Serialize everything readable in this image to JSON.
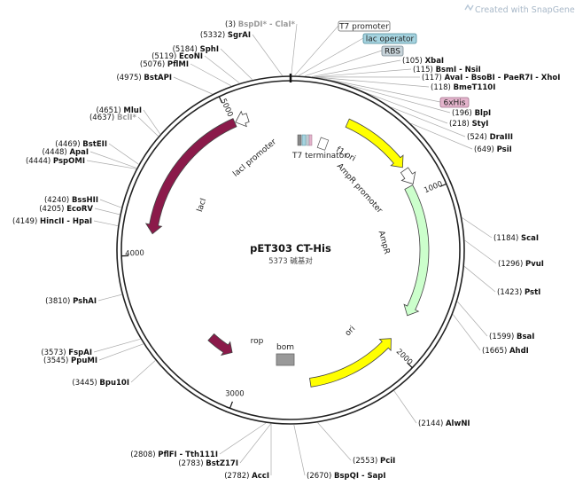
{
  "credit": {
    "text": "Created with SnapGene®",
    "icon": "snapgene-logo-icon",
    "color": "#a8b8c8"
  },
  "plasmid": {
    "name": "pET303 CT-His",
    "length_label": "5373 碱基对",
    "length": 5373
  },
  "sites": [
    {
      "id": "bspdi-clai",
      "label_pos": "(3)",
      "parts": [
        [
          "BspDI*",
          "dim"
        ],
        [
          " - ",
          "dim"
        ],
        [
          "ClaI*",
          "dim"
        ]
      ],
      "bp": 3
    },
    {
      "id": "sgrai",
      "label_pos": "(5332)",
      "parts": [
        [
          "SgrAI",
          "nm"
        ]
      ],
      "bp": 5332
    },
    {
      "id": "sphi",
      "label_pos": "(5184)",
      "parts": [
        [
          "SphI",
          "nm"
        ]
      ],
      "bp": 5184
    },
    {
      "id": "econi",
      "label_pos": "(5119)",
      "parts": [
        [
          "EcoNI",
          "nm"
        ]
      ],
      "bp": 5119
    },
    {
      "id": "pflmi",
      "label_pos": "(5076)",
      "parts": [
        [
          "PflMI",
          "nm"
        ]
      ],
      "bp": 5076
    },
    {
      "id": "bstapi",
      "label_pos": "(4975)",
      "parts": [
        [
          "BstAPI",
          "nm"
        ]
      ],
      "bp": 4975
    },
    {
      "id": "mlui",
      "label_pos": "(4651)",
      "parts": [
        [
          "MluI",
          "nm"
        ]
      ],
      "bp": 4651
    },
    {
      "id": "bcli",
      "label_pos": "(4637)",
      "parts": [
        [
          "BclI*",
          "dim"
        ]
      ],
      "bp": 4637
    },
    {
      "id": "bsteii",
      "label_pos": "(4469)",
      "parts": [
        [
          "BstEII",
          "nm"
        ]
      ],
      "bp": 4469
    },
    {
      "id": "apai",
      "label_pos": "(4448)",
      "parts": [
        [
          "ApaI",
          "nm"
        ]
      ],
      "bp": 4448
    },
    {
      "id": "pspomi",
      "label_pos": "(4444)",
      "parts": [
        [
          "PspOMI",
          "nm"
        ]
      ],
      "bp": 4444
    },
    {
      "id": "bsshii",
      "label_pos": "(4240)",
      "parts": [
        [
          "BssHII",
          "nm"
        ]
      ],
      "bp": 4240
    },
    {
      "id": "ecorv",
      "label_pos": "(4205)",
      "parts": [
        [
          "EcoRV",
          "nm"
        ]
      ],
      "bp": 4205
    },
    {
      "id": "hincii-hpai",
      "label_pos": "(4149)",
      "parts": [
        [
          "HincII",
          "nm"
        ],
        [
          " - ",
          "nm"
        ],
        [
          "HpaI",
          "nm"
        ]
      ],
      "bp": 4149
    },
    {
      "id": "pshai",
      "label_pos": "(3810)",
      "parts": [
        [
          "PshAI",
          "nm"
        ]
      ],
      "bp": 3810
    },
    {
      "id": "fspai",
      "label_pos": "(3573)",
      "parts": [
        [
          "FspAI",
          "nm"
        ]
      ],
      "bp": 3573
    },
    {
      "id": "ppumi",
      "label_pos": "(3545)",
      "parts": [
        [
          "PpuMI",
          "nm"
        ]
      ],
      "bp": 3545
    },
    {
      "id": "bpu10i",
      "label_pos": "(3445)",
      "parts": [
        [
          "Bpu10I",
          "nm"
        ]
      ],
      "bp": 3445
    },
    {
      "id": "pflfi-tth111i",
      "label_pos": "(2808)",
      "parts": [
        [
          "PflFI",
          "nm"
        ],
        [
          " - ",
          "nm"
        ],
        [
          "Tth111I",
          "nm"
        ]
      ],
      "bp": 2808
    },
    {
      "id": "bstz17i",
      "label_pos": "(2783)",
      "parts": [
        [
          "BstZ17I",
          "nm"
        ]
      ],
      "bp": 2783
    },
    {
      "id": "acci",
      "label_pos": "(2782)",
      "parts": [
        [
          "AccI",
          "nm"
        ]
      ],
      "bp": 2782
    },
    {
      "id": "bspqi-sapi",
      "label_pos": "(2670)",
      "parts": [
        [
          "BspQI",
          "nm"
        ],
        [
          " - ",
          "nm"
        ],
        [
          "SapI",
          "nm"
        ]
      ],
      "bp": 2670
    },
    {
      "id": "pcii",
      "label_pos": "(2553)",
      "parts": [
        [
          "PciI",
          "nm"
        ]
      ],
      "bp": 2553
    },
    {
      "id": "alwni",
      "label_pos": "(2144)",
      "parts": [
        [
          "AlwNI",
          "nm"
        ]
      ],
      "bp": 2144
    },
    {
      "id": "ahdi",
      "label_pos": "(1665)",
      "parts": [
        [
          "AhdI",
          "nm"
        ]
      ],
      "bp": 1665
    },
    {
      "id": "bsai",
      "label_pos": "(1599)",
      "parts": [
        [
          "BsaI",
          "nm"
        ]
      ],
      "bp": 1599
    },
    {
      "id": "psti",
      "label_pos": "(1423)",
      "parts": [
        [
          "PstI",
          "nm"
        ]
      ],
      "bp": 1423
    },
    {
      "id": "pvui",
      "label_pos": "(1296)",
      "parts": [
        [
          "PvuI",
          "nm"
        ]
      ],
      "bp": 1296
    },
    {
      "id": "scai",
      "label_pos": "(1184)",
      "parts": [
        [
          "ScaI",
          "nm"
        ]
      ],
      "bp": 1184
    },
    {
      "id": "psii",
      "label_pos": "(649)",
      "parts": [
        [
          "PsiI",
          "nm"
        ]
      ],
      "bp": 649
    },
    {
      "id": "draiii",
      "label_pos": "(524)",
      "parts": [
        [
          "DraIII",
          "nm"
        ]
      ],
      "bp": 524
    },
    {
      "id": "styi",
      "label_pos": "(218)",
      "parts": [
        [
          "StyI",
          "nm"
        ]
      ],
      "bp": 218
    },
    {
      "id": "blpi",
      "label_pos": "(196)",
      "parts": [
        [
          "BlpI",
          "nm"
        ]
      ],
      "bp": 196
    },
    {
      "id": "bmet110i",
      "label_pos": "(118)",
      "parts": [
        [
          "BmeT110I",
          "nm"
        ]
      ],
      "bp": 118
    },
    {
      "id": "avai-xhoi",
      "label_pos": "(117)",
      "parts": [
        [
          "AvaI",
          "nm"
        ],
        [
          " - ",
          "nm"
        ],
        [
          "BsoBI",
          "nm"
        ],
        [
          " - ",
          "nm"
        ],
        [
          "PaeR7I",
          "nm"
        ],
        [
          " - ",
          "nm"
        ],
        [
          "XhoI",
          "nm"
        ]
      ],
      "bp": 117
    },
    {
      "id": "bsmi-nsii",
      "label_pos": "(115)",
      "parts": [
        [
          "BsmI",
          "nm"
        ],
        [
          " - ",
          "nm"
        ],
        [
          "NsiI",
          "nm"
        ]
      ],
      "bp": 115
    },
    {
      "id": "xbai",
      "label_pos": "(105)",
      "parts": [
        [
          "XbaI",
          "nm"
        ]
      ],
      "bp": 105
    }
  ],
  "boxed_features": [
    {
      "id": "t7-promoter",
      "text": "T7 promoter",
      "fill": "#ffffff",
      "stroke": "#666666"
    },
    {
      "id": "lac-operator",
      "text": "lac operator",
      "fill": "#a6d4e0",
      "stroke": "#4d8a99"
    },
    {
      "id": "rbs",
      "text": "RBS",
      "fill": "#c8d4da",
      "stroke": "#7a8a92"
    },
    {
      "id": "6xhis",
      "text": "6xHis",
      "fill": "#e4b4cc",
      "stroke": "#a0708a"
    }
  ],
  "features": [
    {
      "id": "laci",
      "text": "lacI",
      "start": 4130,
      "end": 5020,
      "dir": -1,
      "color": "#8b1a4a"
    },
    {
      "id": "laci-promoter",
      "text": "lacI promoter",
      "start": 5025,
      "end": 5105,
      "dir": -1,
      "color": "#ffffff"
    },
    {
      "id": "f1-ori",
      "text": "f1 ori",
      "start": 360,
      "end": 800,
      "dir": 1,
      "color": "#ffff00"
    },
    {
      "id": "ampr-promoter",
      "text": "AmpR promoter",
      "start": 820,
      "end": 920,
      "dir": 1,
      "color": "#ffffff"
    },
    {
      "id": "ampr",
      "text": "AmpR",
      "start": 925,
      "end": 1780,
      "dir": 1,
      "color": "#ccffcc"
    },
    {
      "id": "ori",
      "text": "ori",
      "start": 1960,
      "end": 2560,
      "dir": -1,
      "color": "#ffff00"
    },
    {
      "id": "bom",
      "text": "bom",
      "start": 2930,
      "end": 3020,
      "dir": 0,
      "color": "#999999"
    },
    {
      "id": "rop",
      "text": "rop",
      "start": 3130,
      "end": 3320,
      "dir": -1,
      "color": "#8b1a4a"
    },
    {
      "id": "t7-terminator",
      "text": "T7 terminator",
      "start": 5373,
      "end": 5373,
      "dir": 0,
      "color": "#ffffff"
    }
  ],
  "ticks": [
    {
      "text": "1000",
      "bp": 1000
    },
    {
      "text": "2000",
      "bp": 2000
    },
    {
      "text": "3000",
      "bp": 3000
    },
    {
      "text": "4000",
      "bp": 4000
    },
    {
      "text": "5000",
      "bp": 5000
    }
  ]
}
